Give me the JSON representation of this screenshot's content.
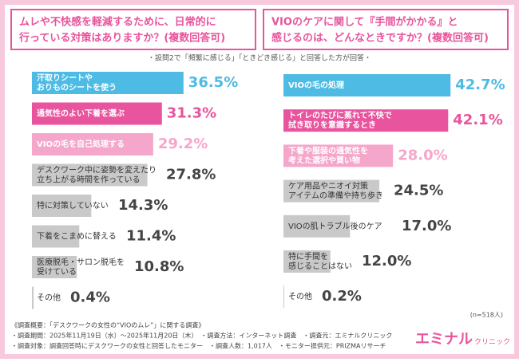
{
  "chart_data": [
    {
      "type": "bar",
      "orientation": "horizontal",
      "title": [
        "ムレや不快感を軽減するために、日常的に",
        "行っている対策はありますか？(複数回答可)"
      ],
      "categories": [
        [
          "汗取りシートや",
          "おりものシートを使う"
        ],
        [
          "通気性のよい下着を選ぶ"
        ],
        [
          "VIOの毛を自己処理する"
        ],
        [
          "デスクワーク中に姿勢を変えたり",
          "立ち上がる時間を作っている"
        ],
        [
          "特に対策していない"
        ],
        [
          "下着をこまめに替える"
        ],
        [
          "医療脱毛・サロン脱毛を",
          "受けている"
        ],
        [
          "その他"
        ]
      ],
      "values": [
        36.5,
        31.3,
        29.2,
        27.8,
        14.3,
        11.4,
        10.8,
        0.4
      ],
      "value_labels": [
        "36.5%",
        "31.3%",
        "29.2%",
        "27.8%",
        "14.3%",
        "11.4%",
        "10.8%",
        "0.4%"
      ],
      "colors": [
        "#4dbbe3",
        "#e8549d",
        "#f5a6cb",
        "#c9c9c9",
        "#c9c9c9",
        "#c9c9c9",
        "#c9c9c9",
        "#c9c9c9"
      ]
    },
    {
      "type": "bar",
      "orientation": "horizontal",
      "title": [
        "VIOのケアに関して『手間がかかる』と",
        "感じるのは、どんなときですか？(複数回答可)"
      ],
      "categories": [
        [
          "VIOの毛の処理"
        ],
        [
          "トイレのたびに蒸れて不快で",
          "拭き取りを意識するとき"
        ],
        [
          "下着や服装の通気性を",
          "考えた選択や買い物"
        ],
        [
          "ケア用品やニオイ対策",
          "アイテムの準備や持ち歩き"
        ],
        [
          "VIOの肌トラブル後のケア"
        ],
        [
          "特に手間を",
          "感じることはない"
        ],
        [
          "その他"
        ]
      ],
      "values": [
        42.7,
        42.1,
        28.0,
        24.5,
        17.0,
        12.0,
        0.2
      ],
      "value_labels": [
        "42.7%",
        "42.1%",
        "28.0%",
        "24.5%",
        "17.0%",
        "12.0%",
        "0.2%"
      ],
      "colors": [
        "#4dbbe3",
        "#e8549d",
        "#f5a6cb",
        "#c9c9c9",
        "#c9c9c9",
        "#c9c9c9",
        "#c9c9c9"
      ]
    }
  ],
  "subtitle": "・設問2で「頻繁に感じる」「ときどき感じる」と回答した方が回答・",
  "sample": "(n=518人)",
  "footer": [
    "《調査概要：「デスクワークの女性の“VIOのムレ”」に関する調査》",
    "・調査期間：2025年11月19日（水）～2025年11月20日（木）　・調査方法：インターネット調査　・調査元：エミナルクリニック",
    "・調査対象：調査回答時にデスクワークの女性と回答したモニター　・調査人数：1,017人　・モニター提供元：PRIZMAリサーチ"
  ],
  "logo": [
    "エミナル",
    "クリニック"
  ]
}
